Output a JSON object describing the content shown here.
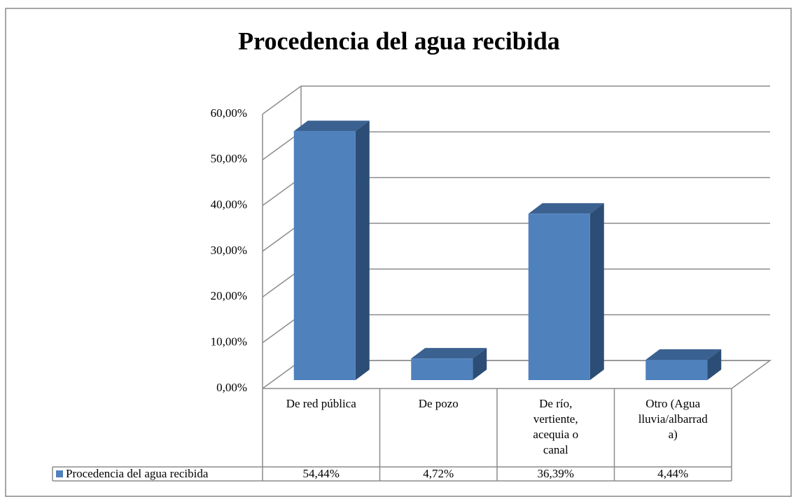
{
  "chart_data": {
    "type": "bar3d",
    "title": "Procedencia del agua recibida",
    "categories": [
      "De red pública",
      "De pozo",
      "De río, vertiente, acequia o canal",
      "Otro (Agua lluvia/albarrada)"
    ],
    "series": [
      {
        "name": "Procedencia del agua recibida",
        "color": "#4f81bd",
        "values": [
          54.44,
          4.72,
          36.39,
          4.44
        ],
        "value_labels": [
          "54,44%",
          "4,72%",
          "36,39%",
          "4,44%"
        ]
      }
    ],
    "ylim": [
      0,
      60
    ],
    "yticks": [
      {
        "value": 0,
        "label": "0,00%"
      },
      {
        "value": 10,
        "label": "10,00%"
      },
      {
        "value": 20,
        "label": "20,00%"
      },
      {
        "value": 30,
        "label": "30,00%"
      },
      {
        "value": 40,
        "label": "40,00%"
      },
      {
        "value": 50,
        "label": "50,00%"
      },
      {
        "value": 60,
        "label": "60,00%"
      }
    ],
    "grid": true,
    "data_table": true
  }
}
